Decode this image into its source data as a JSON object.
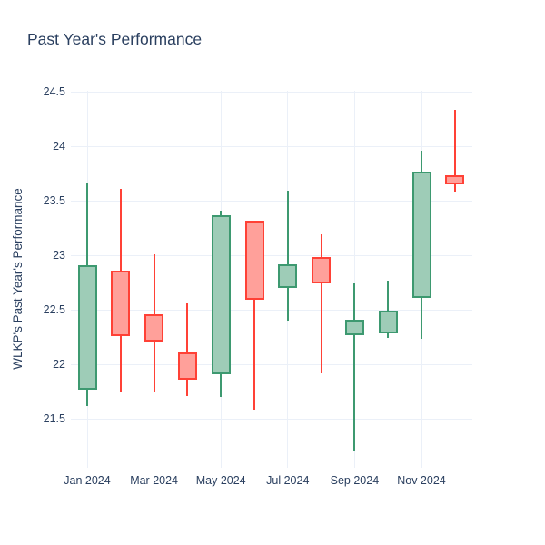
{
  "title": "Past Year's Performance",
  "colors": {
    "text": "#2a3f5f",
    "grid": "#ebf0f8",
    "background": "#ffffff",
    "increasing_line": "#3d9970",
    "increasing_fill": "#9eccb7",
    "decreasing_line": "#ff4136",
    "decreasing_fill": "#ffa09a"
  },
  "chart_data": {
    "type": "candlestick",
    "title": "Past Year's Performance",
    "xlabel": "",
    "ylabel": "WLKP's Past Year's Performance",
    "grid": true,
    "legend": "none",
    "ylim": [
      21.05,
      24.51
    ],
    "y_ticks": [
      21.5,
      22,
      22.5,
      23,
      23.5,
      24,
      24.5
    ],
    "y_tick_labels": [
      "21.5",
      "22",
      "22.5",
      "23",
      "23.5",
      "24",
      "24.5"
    ],
    "x_tick_indices": [
      0,
      2,
      4,
      6,
      8,
      10
    ],
    "x_tick_labels": [
      "Jan 2024",
      "Mar 2024",
      "May 2024",
      "Jul 2024",
      "Sep 2024",
      "Nov 2024"
    ],
    "categories": [
      "Jan 2024",
      "Feb 2024",
      "Mar 2024",
      "Apr 2024",
      "May 2024",
      "Jun 2024",
      "Jul 2024",
      "Aug 2024",
      "Sep 2024",
      "Oct 2024",
      "Nov 2024",
      "Dec 2024"
    ],
    "series": [
      {
        "month": "Jan 2024",
        "open": 21.77,
        "high": 23.67,
        "low": 21.62,
        "close": 22.91,
        "direction": "increasing"
      },
      {
        "month": "Feb 2024",
        "open": 22.86,
        "high": 23.61,
        "low": 21.74,
        "close": 22.26,
        "direction": "decreasing"
      },
      {
        "month": "Mar 2024",
        "open": 22.46,
        "high": 23.01,
        "low": 21.74,
        "close": 22.21,
        "direction": "decreasing"
      },
      {
        "month": "Apr 2024",
        "open": 22.11,
        "high": 22.56,
        "low": 21.71,
        "close": 21.86,
        "direction": "decreasing"
      },
      {
        "month": "May 2024",
        "open": 21.91,
        "high": 23.41,
        "low": 21.7,
        "close": 23.37,
        "direction": "increasing"
      },
      {
        "month": "Jun 2024",
        "open": 23.32,
        "high": 23.32,
        "low": 21.58,
        "close": 22.59,
        "direction": "decreasing"
      },
      {
        "month": "Jul 2024",
        "open": 22.7,
        "high": 23.59,
        "low": 22.4,
        "close": 22.92,
        "direction": "increasing"
      },
      {
        "month": "Aug 2024",
        "open": 22.98,
        "high": 23.19,
        "low": 21.92,
        "close": 22.74,
        "direction": "decreasing"
      },
      {
        "month": "Sep 2024",
        "open": 22.27,
        "high": 22.74,
        "low": 21.2,
        "close": 22.41,
        "direction": "increasing"
      },
      {
        "month": "Oct 2024",
        "open": 22.28,
        "high": 22.77,
        "low": 22.24,
        "close": 22.49,
        "direction": "increasing"
      },
      {
        "month": "Nov 2024",
        "open": 22.61,
        "high": 23.96,
        "low": 22.23,
        "close": 23.77,
        "direction": "increasing"
      },
      {
        "month": "Dec 2024",
        "open": 23.73,
        "high": 24.33,
        "low": 23.58,
        "close": 23.65,
        "direction": "decreasing"
      }
    ]
  }
}
